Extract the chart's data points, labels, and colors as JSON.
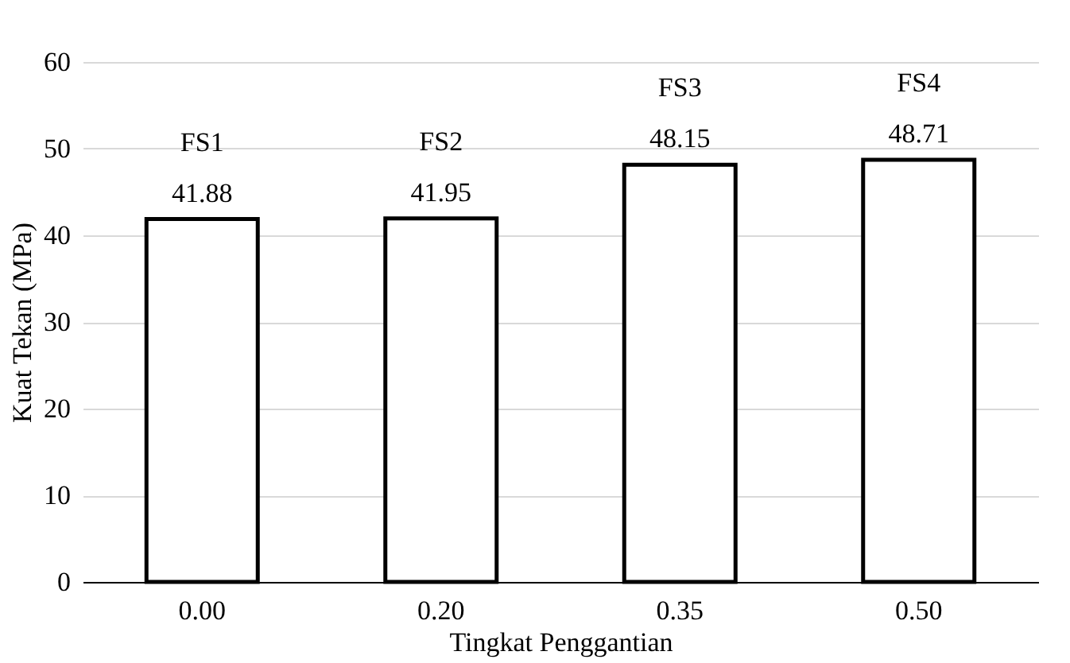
{
  "chart_data": {
    "type": "bar",
    "xlabel": "Tingkat Penggantian",
    "ylabel": "Kuat Tekan (MPa)",
    "categories": [
      "0.00",
      "0.20",
      "0.35",
      "0.50"
    ],
    "values": [
      41.88,
      41.95,
      48.15,
      48.71
    ],
    "color": "#000000",
    "ylim": [
      0,
      60
    ],
    "yticks": [
      0,
      10,
      20,
      30,
      40,
      50,
      60
    ],
    "grid": "y",
    "data_labels": true,
    "annotations": [
      "FS1",
      "FS2",
      "FS3",
      "FS4"
    ]
  }
}
